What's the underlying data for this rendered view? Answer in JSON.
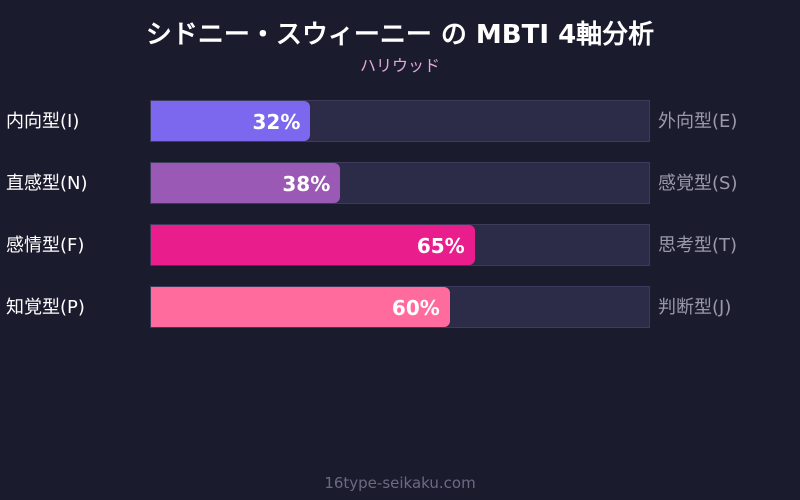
{
  "title": "シドニー・スウィーニー の MBTI 4軸分析",
  "subtitle": "ハリウッド",
  "footer": "16type-seikaku.com",
  "chart_data": {
    "type": "bar",
    "orientation": "horizontal",
    "title": "シドニー・スウィーニー の MBTI 4軸分析",
    "subtitle": "ハリウッド",
    "xlim": [
      0,
      100
    ],
    "rows": [
      {
        "left_label": "内向型(I)",
        "right_label": "外向型(E)",
        "value": 32,
        "value_label": "32%",
        "color": "#7b68ee"
      },
      {
        "left_label": "直感型(N)",
        "right_label": "感覚型(S)",
        "value": 38,
        "value_label": "38%",
        "color": "#9b59b6"
      },
      {
        "left_label": "感情型(F)",
        "right_label": "思考型(T)",
        "value": 65,
        "value_label": "65%",
        "color": "#e91e8c"
      },
      {
        "left_label": "知覚型(P)",
        "right_label": "判断型(J)",
        "value": 60,
        "value_label": "60%",
        "color": "#ff6b9d"
      }
    ]
  }
}
